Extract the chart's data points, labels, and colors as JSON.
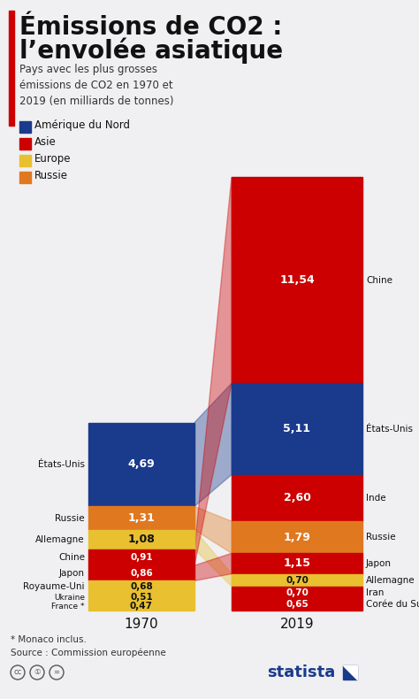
{
  "title_line1": "Émissions de CO2 :",
  "title_line2": "l’envolée asiatique",
  "subtitle": "Pays avec les plus grosses\némissions de CO2 en 1970 et\n2019 (en milliards de tonnes)",
  "footnote": "* Monaco inclus.\nSource : Commission européenne",
  "bg_color": "#f0f0f2",
  "title_bar_color": "#cc0000",
  "legend": [
    {
      "label": "Amérique du Nord",
      "color": "#1a3a8c"
    },
    {
      "label": "Asie",
      "color": "#cc0000"
    },
    {
      "label": "Europe",
      "color": "#e8c030"
    },
    {
      "label": "Russie",
      "color": "#e07820"
    }
  ],
  "data_1970": [
    {
      "country": "États-Unis",
      "value": 4.69,
      "color": "#1a3a8c"
    },
    {
      "country": "Russie",
      "value": 1.31,
      "color": "#e07820"
    },
    {
      "country": "Allemagne",
      "value": 1.08,
      "color": "#e8c030"
    },
    {
      "country": "Chine",
      "value": 0.91,
      "color": "#cc0000"
    },
    {
      "country": "Japon",
      "value": 0.86,
      "color": "#cc0000"
    },
    {
      "country": "Royaume-Uni",
      "value": 0.68,
      "color": "#e8c030"
    },
    {
      "country": "Ukraine",
      "value": 0.51,
      "color": "#e8c030"
    },
    {
      "country": "France *",
      "value": 0.47,
      "color": "#e8c030"
    }
  ],
  "data_2019": [
    {
      "country": "Chine",
      "value": 11.54,
      "color": "#cc0000"
    },
    {
      "country": "États-Unis",
      "value": 5.11,
      "color": "#1a3a8c"
    },
    {
      "country": "Inde",
      "value": 2.6,
      "color": "#cc0000"
    },
    {
      "country": "Russie",
      "value": 1.79,
      "color": "#e07820"
    },
    {
      "country": "Japon",
      "value": 1.15,
      "color": "#cc0000"
    },
    {
      "country": "Allemagne",
      "value": 0.7,
      "color": "#e8c030"
    },
    {
      "country": "Iran",
      "value": 0.7,
      "color": "#cc0000"
    },
    {
      "country": "Corée du Sud",
      "value": 0.65,
      "color": "#cc0000"
    }
  ],
  "connections": [
    [
      "États-Unis",
      "États-Unis"
    ],
    [
      "Russie",
      "Russie"
    ],
    [
      "Allemagne",
      "Allemagne"
    ],
    [
      "Chine",
      "Chine"
    ],
    [
      "Japon",
      "Japon"
    ]
  ]
}
